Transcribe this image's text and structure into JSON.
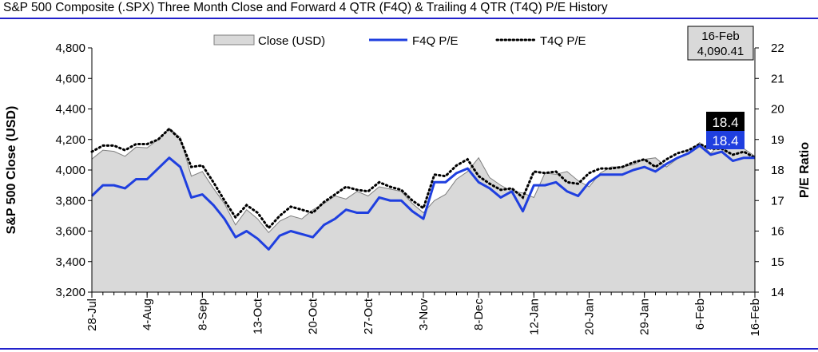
{
  "page": {
    "title": "S&P 500 Composite (.SPX) Three Month Close and Forward 4 QTR (F4Q) & Trailing 4 QTR (T4Q) P/E History"
  },
  "callout": {
    "date": "16-Feb",
    "value": "4,090.41"
  },
  "end_labels": {
    "t4q": "18.4",
    "f4q": "18.4"
  },
  "colors": {
    "area_fill": "#d9d9d9",
    "area_stroke": "#7f7f7f",
    "f4q": "#1f3fdf",
    "t4q": "#000000",
    "rule": "#2222cc"
  },
  "chart_data": {
    "type": "area",
    "xlabel": "",
    "ylabel": "S&P 500 Close (USD)",
    "y2label": "P/E Ratio",
    "ylim": [
      3200,
      4800
    ],
    "y2lim": [
      14,
      22
    ],
    "yticks": [
      "4,800",
      "4,600",
      "4,400",
      "4,200",
      "4,000",
      "3,800",
      "3,600",
      "3,400",
      "3,200"
    ],
    "y2ticks": [
      "22",
      "21",
      "20",
      "19",
      "18",
      "17",
      "16",
      "15",
      "14"
    ],
    "xtick_labels": [
      "28-Jul",
      "4-Aug",
      "8-Sep",
      "13-Oct",
      "20-Oct",
      "27-Oct",
      "3-Nov",
      "8-Dec",
      "12-Jan",
      "20-Jan",
      "29-Jan",
      "6-Feb",
      "16-Feb"
    ],
    "xtick_index": [
      0,
      5,
      10,
      15,
      20,
      25,
      30,
      35,
      40,
      45,
      50,
      55,
      60
    ],
    "legend": [
      "Close (USD)",
      "F4Q P/E",
      "T4Q P/E"
    ],
    "legend_position": "top",
    "grid": false,
    "series": [
      {
        "name": "Close (USD)",
        "type": "area",
        "axis": "left",
        "values": [
          4072,
          4130,
          4122,
          4090,
          4150,
          4145,
          4200,
          4274,
          4213,
          3960,
          3990,
          3880,
          3780,
          3640,
          3740,
          3680,
          3590,
          3665,
          3700,
          3680,
          3740,
          3780,
          3830,
          3810,
          3860,
          3830,
          3890,
          3875,
          3860,
          3780,
          3720,
          3800,
          3840,
          3940,
          3990,
          4080,
          3950,
          3900,
          3860,
          3850,
          3820,
          3980,
          3972,
          3990,
          3930,
          3890,
          3980,
          4020,
          4020,
          4035,
          4070,
          4080,
          4020,
          4075,
          4110,
          4180,
          4110,
          4180,
          4150,
          4140,
          4090
        ]
      },
      {
        "name": "F4Q P/E",
        "type": "line",
        "axis": "right",
        "values": [
          17.15,
          17.5,
          17.5,
          17.4,
          17.7,
          17.7,
          18.05,
          18.4,
          18.1,
          17.1,
          17.2,
          16.85,
          16.4,
          15.8,
          16.0,
          15.75,
          15.4,
          15.85,
          16.0,
          15.9,
          15.8,
          16.2,
          16.4,
          16.7,
          16.6,
          16.6,
          17.1,
          17.0,
          17.0,
          16.65,
          16.4,
          17.6,
          17.6,
          17.9,
          18.05,
          17.6,
          17.4,
          17.1,
          17.3,
          16.65,
          17.5,
          17.5,
          17.6,
          17.3,
          17.15,
          17.6,
          17.85,
          17.85,
          17.85,
          18.0,
          18.1,
          17.95,
          18.2,
          18.4,
          18.55,
          18.8,
          18.5,
          18.6,
          18.3,
          18.4,
          18.4
        ]
      },
      {
        "name": "T4Q P/E",
        "type": "line",
        "axis": "right",
        "values": [
          18.6,
          18.8,
          18.8,
          18.65,
          18.85,
          18.85,
          19.0,
          19.35,
          19.0,
          18.1,
          18.15,
          17.6,
          17.0,
          16.45,
          16.85,
          16.6,
          16.1,
          16.5,
          16.8,
          16.7,
          16.6,
          16.95,
          17.2,
          17.45,
          17.35,
          17.3,
          17.6,
          17.45,
          17.35,
          17.0,
          16.75,
          17.85,
          17.8,
          18.15,
          18.35,
          17.8,
          17.55,
          17.35,
          17.4,
          17.1,
          17.95,
          17.9,
          17.95,
          17.6,
          17.55,
          17.9,
          18.05,
          18.05,
          18.1,
          18.25,
          18.35,
          18.1,
          18.35,
          18.55,
          18.65,
          18.85,
          18.7,
          18.7,
          18.5,
          18.6,
          18.4
        ]
      }
    ]
  }
}
